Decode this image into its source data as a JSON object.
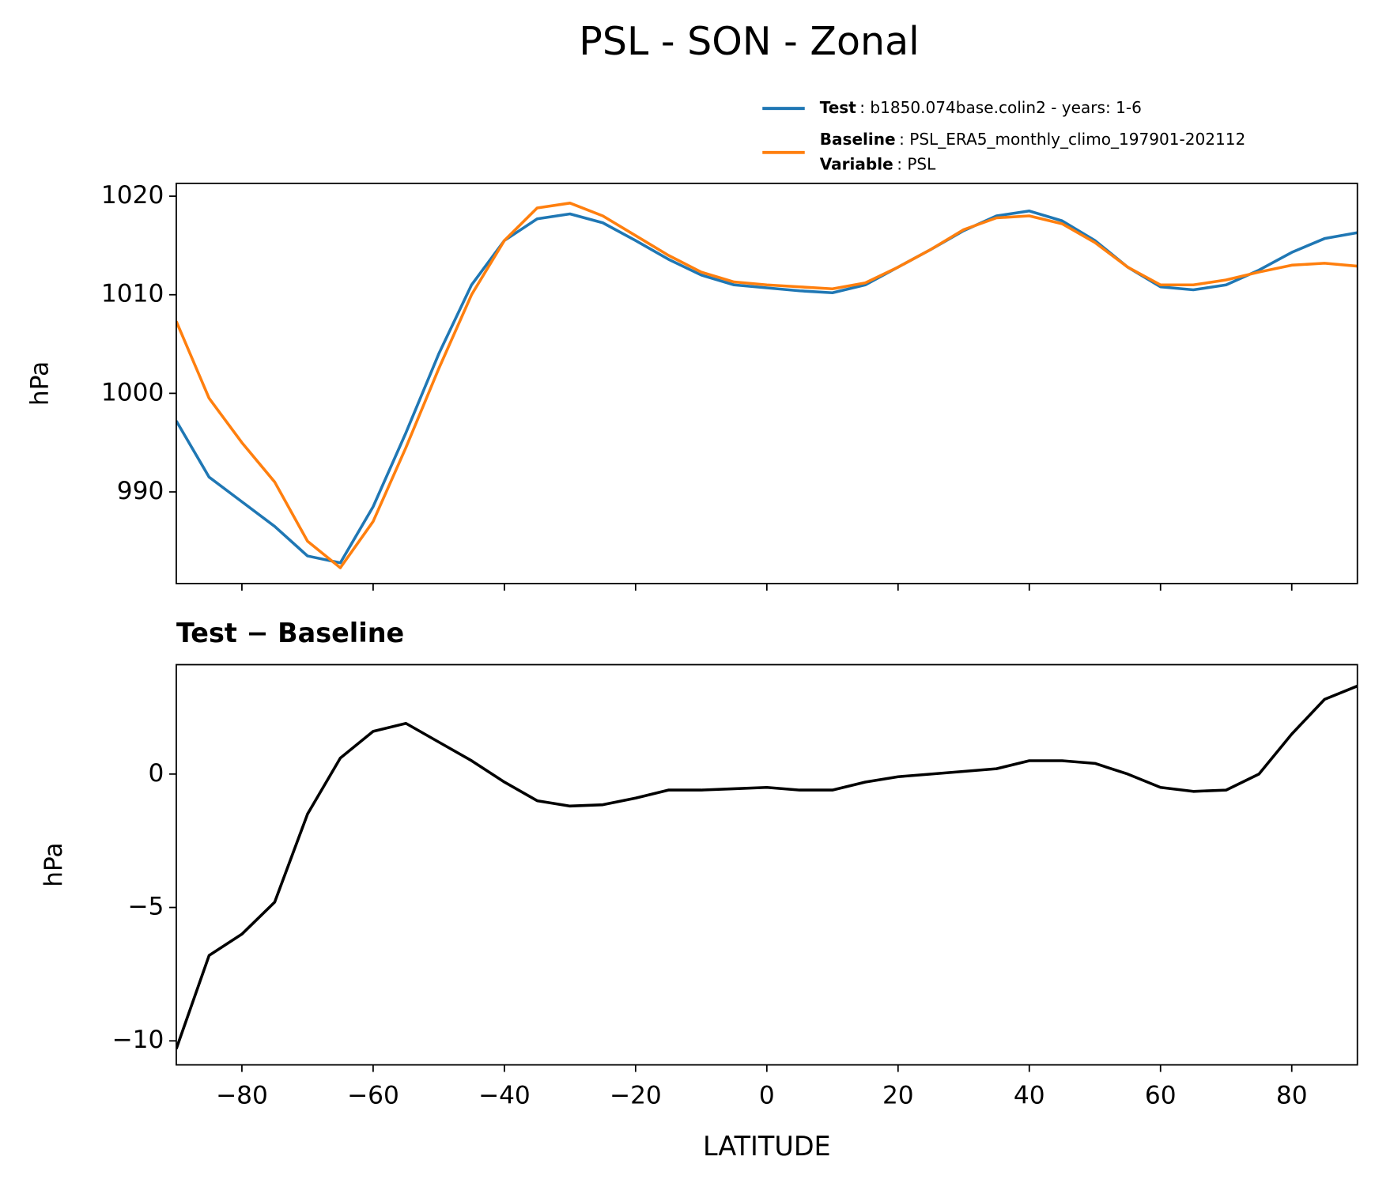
{
  "title": "PSL - SON - Zonal",
  "chart_data": [
    {
      "type": "line",
      "x": [
        -90,
        -85,
        -80,
        -75,
        -70,
        -65,
        -60,
        -55,
        -50,
        -45,
        -40,
        -35,
        -30,
        -25,
        -20,
        -15,
        -10,
        -5,
        0,
        5,
        10,
        15,
        20,
        25,
        30,
        35,
        40,
        45,
        50,
        55,
        60,
        65,
        70,
        75,
        80,
        85,
        90
      ],
      "series": [
        {
          "name": "Test",
          "legend_text": ": b1850.074base.colin2 - years: 1-6",
          "color": "#1f77b4",
          "values": [
            997.2,
            991.5,
            989,
            986.5,
            983.5,
            982.8,
            988.5,
            996,
            1004,
            1011,
            1015.5,
            1017.7,
            1018.2,
            1017.3,
            1015.5,
            1013.6,
            1012,
            1011,
            1010.7,
            1010.4,
            1010.2,
            1011,
            1012.8,
            1014.6,
            1016.5,
            1018,
            1018.5,
            1017.5,
            1015.5,
            1012.8,
            1010.8,
            1010.5,
            1011,
            1012.5,
            1014.3,
            1015.7,
            1016.3
          ]
        },
        {
          "name": "Baseline",
          "legend_text": ": PSL_ERA5_monthly_climo_197901-202112",
          "legend_extra": {
            "key": "Variable",
            "text": ": PSL"
          },
          "color": "#ff7f0e",
          "values": [
            1007.3,
            999.5,
            995,
            991,
            985,
            982.3,
            987,
            994.5,
            1002.5,
            1010,
            1015.5,
            1018.8,
            1019.3,
            1018,
            1016,
            1014,
            1012.3,
            1011.3,
            1011,
            1010.8,
            1010.6,
            1011.2,
            1012.8,
            1014.6,
            1016.6,
            1017.8,
            1018,
            1017.2,
            1015.3,
            1012.8,
            1011,
            1011,
            1011.5,
            1012.3,
            1013,
            1013.2,
            1012.9
          ]
        }
      ],
      "ylabel": "hPa",
      "xlim": [
        -90,
        90
      ],
      "xticks": [
        -80,
        -60,
        -40,
        -20,
        0,
        20,
        40,
        60,
        80
      ],
      "xtick_labels": false,
      "ylim": [
        980.7,
        1021.3
      ],
      "yticks": [
        990,
        1000,
        1010,
        1020
      ]
    },
    {
      "type": "line",
      "title": "Test − Baseline",
      "x": [
        -90,
        -85,
        -80,
        -75,
        -70,
        -65,
        -60,
        -55,
        -50,
        -45,
        -40,
        -35,
        -30,
        -25,
        -20,
        -15,
        -10,
        -5,
        0,
        5,
        10,
        15,
        20,
        25,
        30,
        35,
        40,
        45,
        50,
        55,
        60,
        65,
        70,
        75,
        80,
        85,
        90
      ],
      "values": [
        -10.3,
        -6.8,
        -6,
        -4.8,
        -1.5,
        0.6,
        1.6,
        1.9,
        1.2,
        0.5,
        -0.3,
        -1.0,
        -1.2,
        -1.15,
        -0.9,
        -0.6,
        -0.6,
        -0.55,
        -0.5,
        -0.6,
        -0.6,
        -0.3,
        -0.1,
        0,
        0.1,
        0.2,
        0.5,
        0.5,
        0.4,
        0,
        -0.5,
        -0.65,
        -0.6,
        0,
        1.5,
        2.8,
        3.3
      ],
      "color": "#000000",
      "ylabel": "hPa",
      "xlabel": "LATITUDE",
      "xlim": [
        -90,
        90
      ],
      "xticks": [
        {
          "value": -80,
          "label": "−80"
        },
        {
          "value": -60,
          "label": "−60"
        },
        {
          "value": -40,
          "label": "−40"
        },
        {
          "value": -20,
          "label": "−20"
        },
        0,
        20,
        40,
        60,
        80
      ],
      "xtick_labels": true,
      "ylim": [
        -10.9,
        4.1
      ],
      "yticks": [
        {
          "value": -10,
          "label": "−10"
        },
        {
          "value": -5,
          "label": "−5"
        },
        0
      ]
    }
  ]
}
